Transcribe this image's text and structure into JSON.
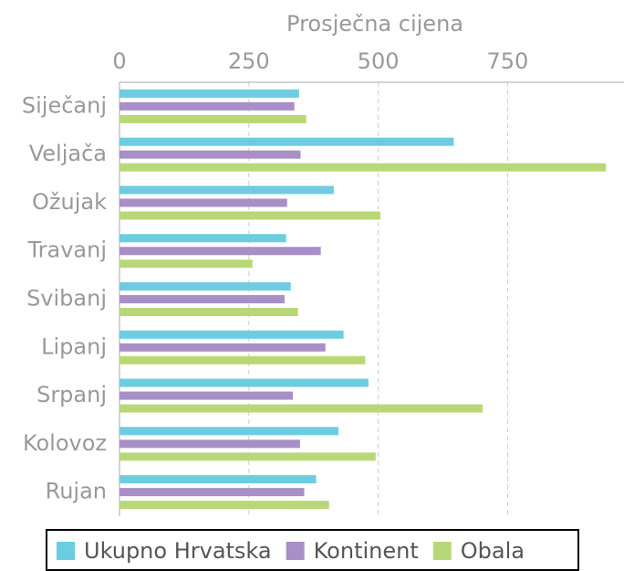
{
  "chart_data": {
    "type": "bar",
    "orientation": "horizontal",
    "x_label": "Prosječna cijena",
    "categories": [
      "Siječanj",
      "Veljača",
      "Ožujak",
      "Travanj",
      "Svibanj",
      "Lipanj",
      "Srpanj",
      "Kolovoz",
      "Rujan"
    ],
    "series": [
      {
        "name": "Ukupno Hrvatska",
        "color": "#6ccde0",
        "values": [
          347,
          646,
          414,
          322,
          331,
          433,
          481,
          423,
          380
        ]
      },
      {
        "name": "Kontinent",
        "color": "#a98fc7",
        "values": [
          338,
          350,
          324,
          389,
          319,
          398,
          335,
          349,
          357
        ]
      },
      {
        "name": "Obala",
        "color": "#b8d878",
        "values": [
          361,
          940,
          504,
          257,
          345,
          475,
          702,
          495,
          405
        ]
      }
    ],
    "xlim": [
      0,
      975
    ],
    "xticks": [
      0,
      250,
      500,
      750
    ],
    "grid": true,
    "legend": "bottom"
  }
}
